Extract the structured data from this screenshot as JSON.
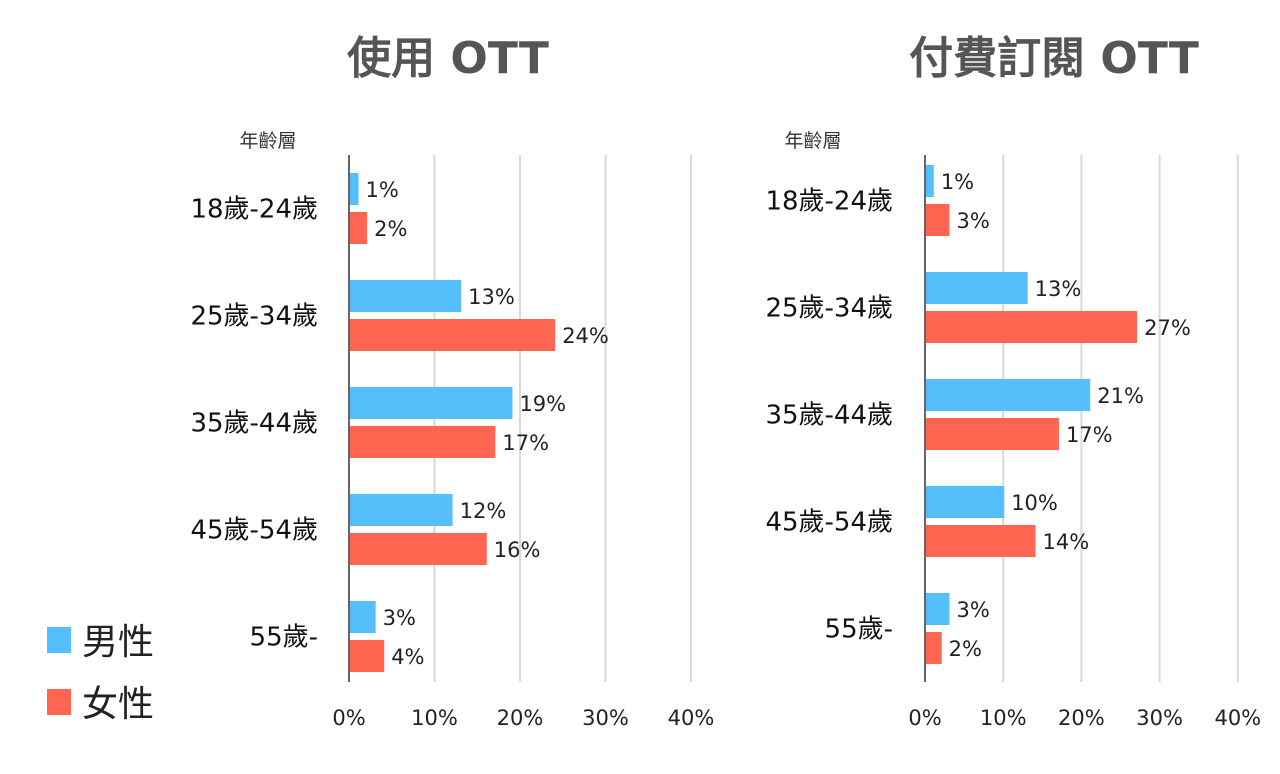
{
  "colors": {
    "male": "#55BFFB",
    "female": "#FF6550"
  },
  "legend": [
    {
      "key": "male",
      "label": "男性"
    },
    {
      "key": "female",
      "label": "女性"
    }
  ],
  "chart_data": [
    {
      "type": "bar",
      "orientation": "horizontal",
      "title": "使用 OTT",
      "ylabel": "年齡層",
      "categories": [
        "18歲-24歲",
        "25歲-34歲",
        "35歲-44歲",
        "45歲-54歲",
        "55歲-"
      ],
      "series": [
        {
          "name": "男性",
          "values": [
            1,
            13,
            19,
            12,
            3
          ]
        },
        {
          "name": "女性",
          "values": [
            2,
            24,
            17,
            16,
            4
          ]
        }
      ],
      "xlim": [
        0,
        40
      ],
      "xticks": [
        "0%",
        "10%",
        "20%",
        "30%",
        "40%"
      ],
      "value_suffix": "%",
      "grid": true
    },
    {
      "type": "bar",
      "orientation": "horizontal",
      "title": "付費訂閱 OTT",
      "ylabel": "年齡層",
      "categories": [
        "18歲-24歲",
        "25歲-34歲",
        "35歲-44歲",
        "45歲-54歲",
        "55歲-"
      ],
      "series": [
        {
          "name": "男性",
          "values": [
            1,
            13,
            21,
            10,
            3
          ]
        },
        {
          "name": "女性",
          "values": [
            3,
            27,
            17,
            14,
            2
          ]
        }
      ],
      "xlim": [
        0,
        40
      ],
      "xticks": [
        "0%",
        "10%",
        "20%",
        "30%",
        "40%"
      ],
      "value_suffix": "%",
      "grid": true
    }
  ]
}
